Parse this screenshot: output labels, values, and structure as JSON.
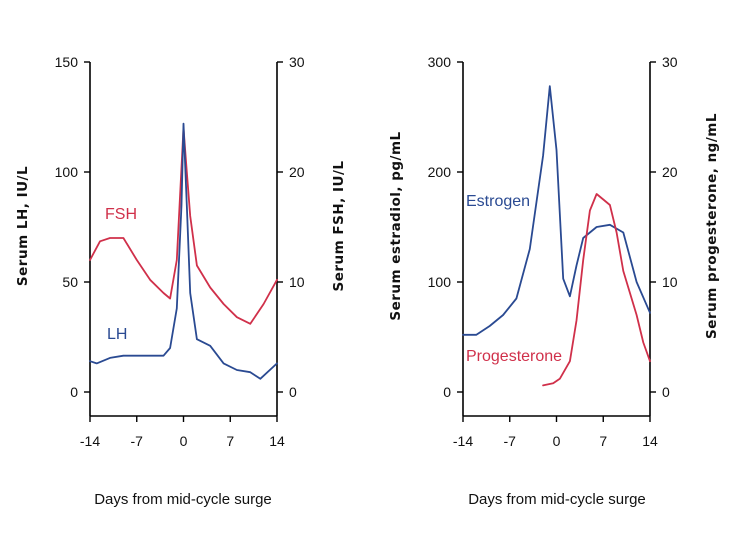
{
  "colors": {
    "red": "#d0304a",
    "blue": "#2a4a92"
  },
  "chart_data": [
    {
      "type": "line",
      "ylabel_left": "Serum LH, IU/L",
      "ylabel_right": "Serum FSH, IU/L",
      "xlabel": "Days from mid-cycle surge",
      "xlim": [
        -14,
        14
      ],
      "ylim_left": [
        0,
        150
      ],
      "ylim_right": [
        0,
        30
      ],
      "x_ticks": [
        "-14",
        "-7",
        "0",
        "7",
        "14"
      ],
      "y_ticks_left": [
        "0",
        "50",
        "100",
        "150"
      ],
      "y_ticks_right": [
        "0",
        "10",
        "20",
        "30"
      ],
      "series": [
        {
          "name": "FSH",
          "axis": "right",
          "color": "#d0304a",
          "points": [
            [
              -14,
              12
            ],
            [
              -12.5,
              13.7
            ],
            [
              -11,
              14
            ],
            [
              -9,
              14
            ],
            [
              -7,
              12
            ],
            [
              -5,
              10.2
            ],
            [
              -3,
              9
            ],
            [
              -2,
              8.5
            ],
            [
              -1,
              12
            ],
            [
              0,
              24
            ],
            [
              0.5,
              20
            ],
            [
              1,
              16
            ],
            [
              2,
              11.5
            ],
            [
              4,
              9.5
            ],
            [
              6,
              8
            ],
            [
              8,
              6.8
            ],
            [
              10,
              6.2
            ],
            [
              12,
              8
            ],
            [
              14,
              10.2
            ]
          ]
        },
        {
          "name": "LH",
          "axis": "left",
          "color": "#2a4a92",
          "points": [
            [
              -14,
              14
            ],
            [
              -13,
              13
            ],
            [
              -11,
              15.5
            ],
            [
              -9,
              16.5
            ],
            [
              -5,
              16.5
            ],
            [
              -3,
              16.5
            ],
            [
              -2,
              20
            ],
            [
              -1,
              38
            ],
            [
              -0.3,
              85
            ],
            [
              0,
              122
            ],
            [
              0.5,
              85
            ],
            [
              1,
              45
            ],
            [
              2,
              24
            ],
            [
              4,
              21
            ],
            [
              6,
              13
            ],
            [
              8,
              10
            ],
            [
              10,
              9
            ],
            [
              11.5,
              6
            ],
            [
              14,
              13
            ]
          ]
        }
      ]
    },
    {
      "type": "line",
      "ylabel_left": "Serum estradiol, pg/mL",
      "ylabel_right": "Serum progesterone, ng/mL",
      "xlabel": "Days from mid-cycle surge",
      "xlim": [
        -14,
        14
      ],
      "ylim_left": [
        0,
        300
      ],
      "ylim_right": [
        0,
        30
      ],
      "x_ticks": [
        "-14",
        "-7",
        "0",
        "7",
        "14"
      ],
      "y_ticks_left": [
        "0",
        "100",
        "200",
        "300"
      ],
      "y_ticks_right": [
        "0",
        "10",
        "20",
        "30"
      ],
      "series": [
        {
          "name": "Estrogen",
          "axis": "left",
          "color": "#2a4a92",
          "points": [
            [
              -14,
              52
            ],
            [
              -12,
              52
            ],
            [
              -10,
              60
            ],
            [
              -8,
              70
            ],
            [
              -6,
              85
            ],
            [
              -4,
              130
            ],
            [
              -2,
              215
            ],
            [
              -1,
              278
            ],
            [
              0,
              220
            ],
            [
              1,
              103
            ],
            [
              2,
              87
            ],
            [
              3,
              115
            ],
            [
              4,
              140
            ],
            [
              6,
              150
            ],
            [
              8,
              152
            ],
            [
              10,
              145
            ],
            [
              12,
              100
            ],
            [
              14,
              72
            ]
          ]
        },
        {
          "name": "Progesterone",
          "axis": "right",
          "color": "#d0304a",
          "points": [
            [
              -2,
              0.6
            ],
            [
              -0.5,
              0.8
            ],
            [
              0.5,
              1.2
            ],
            [
              2,
              2.8
            ],
            [
              3,
              6.5
            ],
            [
              4,
              12
            ],
            [
              5,
              16.5
            ],
            [
              6,
              18
            ],
            [
              7,
              17.5
            ],
            [
              8,
              17
            ],
            [
              9,
              14.5
            ],
            [
              10,
              11
            ],
            [
              12,
              7
            ],
            [
              13,
              4.5
            ],
            [
              14,
              2.8
            ]
          ]
        }
      ]
    }
  ]
}
